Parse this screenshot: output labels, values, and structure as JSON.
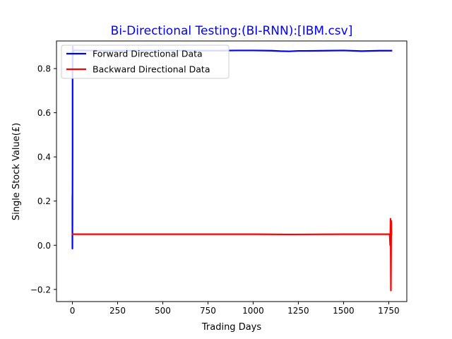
{
  "chart_data": {
    "type": "line",
    "title": "Bi-Directional Testing:(BI-RNN):[IBM.csv]",
    "title_color": "#0000ff",
    "xlabel": "Trading Days",
    "ylabel": "Single Stock Value(£)",
    "xlim": [
      -88,
      1850
    ],
    "ylim": [
      -0.255,
      0.925
    ],
    "xticks": [
      0,
      250,
      500,
      750,
      1000,
      1250,
      1500,
      1750
    ],
    "xtick_labels": [
      "0",
      "250",
      "500",
      "750",
      "1000",
      "1250",
      "1500",
      "1750"
    ],
    "yticks": [
      -0.2,
      0.0,
      0.2,
      0.4,
      0.6,
      0.8
    ],
    "ytick_labels": [
      "−0.2",
      "0.0",
      "0.2",
      "0.4",
      "0.6",
      "0.8"
    ],
    "grid": false,
    "legend": "upper-left",
    "series": [
      {
        "name": "Forward Directional Data",
        "color": "#0000ff",
        "x": [
          0,
          0,
          1,
          1,
          2,
          3,
          4,
          6,
          8,
          50,
          200,
          400,
          600,
          800,
          900,
          1000,
          1100,
          1150,
          1200,
          1250,
          1300,
          1400,
          1500,
          1600,
          1700,
          1765
        ],
        "y": [
          0.22,
          -0.015,
          0.45,
          0.82,
          0.9,
          0.87,
          0.885,
          0.88,
          0.882,
          0.882,
          0.881,
          0.882,
          0.882,
          0.881,
          0.882,
          0.882,
          0.881,
          0.879,
          0.878,
          0.88,
          0.88,
          0.881,
          0.882,
          0.879,
          0.881,
          0.881
        ]
      },
      {
        "name": "Backward Directional Data",
        "color": "#ff0000",
        "x": [
          0,
          200,
          500,
          800,
          1000,
          1200,
          1500,
          1755,
          1758,
          1760,
          1762,
          1764,
          1765
        ],
        "y": [
          0.05,
          0.05,
          0.05,
          0.05,
          0.05,
          0.049,
          0.05,
          0.05,
          0.0,
          0.12,
          -0.205,
          0.11,
          0.05
        ]
      }
    ]
  }
}
